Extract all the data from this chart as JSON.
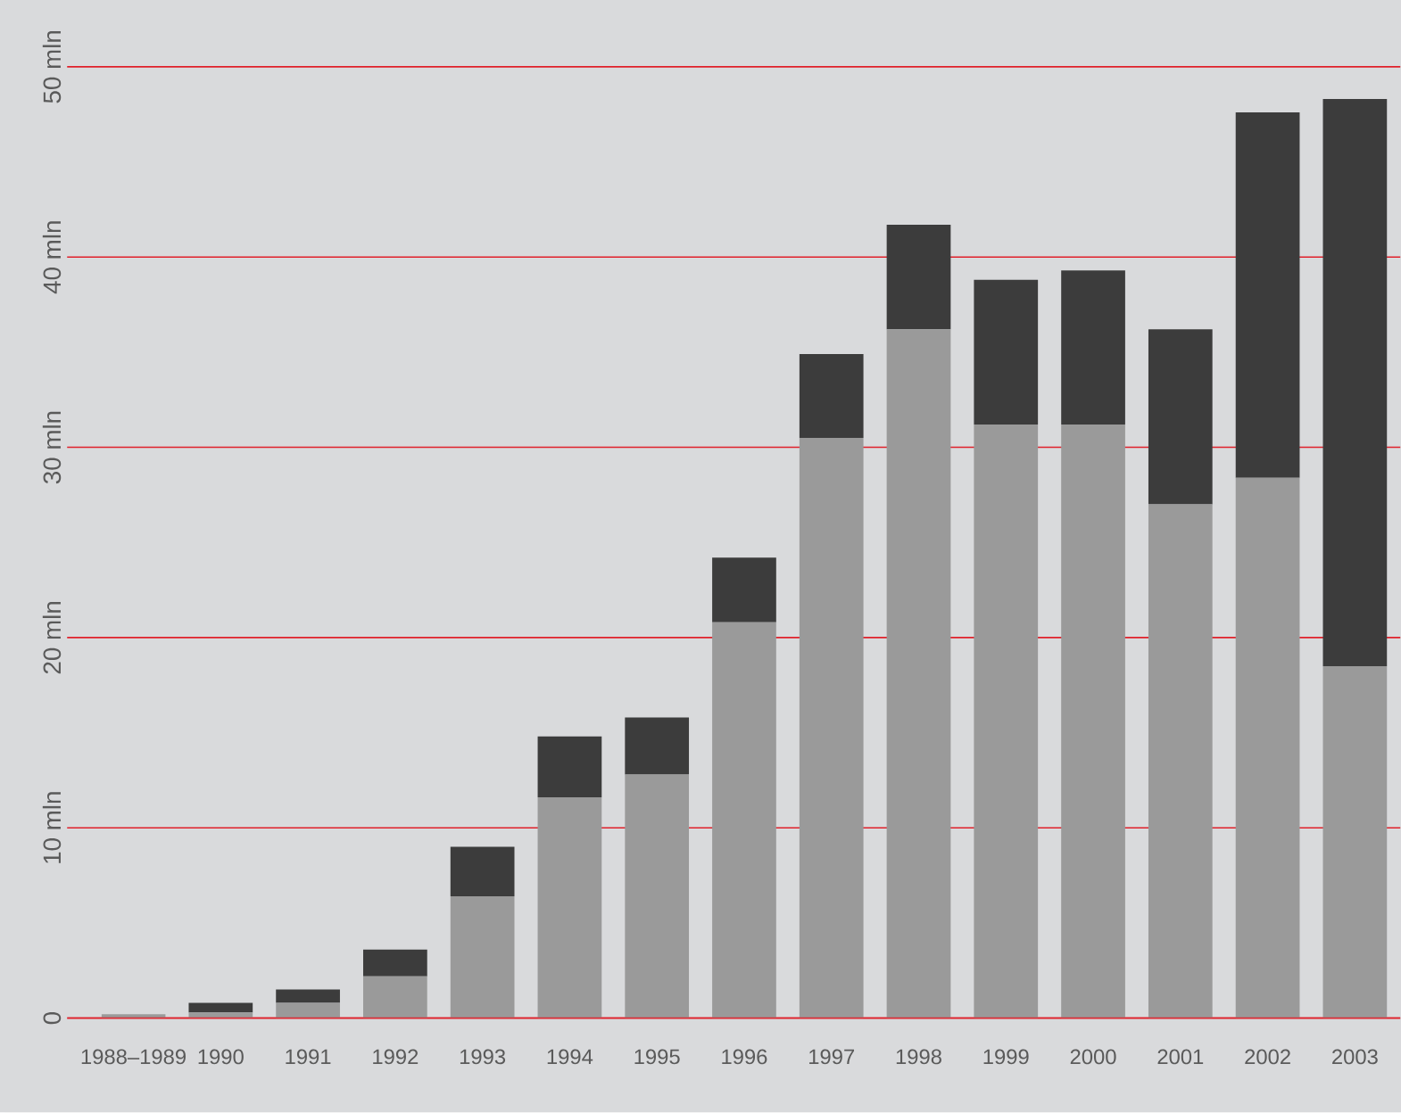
{
  "chart_data": {
    "type": "bar",
    "stacked": true,
    "categories": [
      "1988–1989",
      "1990",
      "1991",
      "1992",
      "1993",
      "1994",
      "1995",
      "1996",
      "1997",
      "1998",
      "1999",
      "2000",
      "2001",
      "2002",
      "2003"
    ],
    "series": [
      {
        "color": "#9a9a9a",
        "values": [
          0.2,
          0.3,
          0.8,
          2.2,
          6.4,
          11.6,
          12.8,
          20.8,
          30.5,
          36.2,
          31.2,
          31.2,
          27.0,
          28.4,
          18.5
        ]
      },
      {
        "color": "#3c3c3c",
        "values": [
          0,
          0.5,
          0.7,
          1.4,
          2.6,
          3.2,
          3.0,
          3.4,
          4.4,
          5.5,
          7.6,
          8.1,
          9.2,
          19.2,
          29.8
        ]
      }
    ],
    "ylim": [
      0,
      53.5
    ],
    "yticks": [
      0,
      {
        "value": 10,
        "label": "10 mln"
      },
      {
        "value": 20,
        "label": "20 mln"
      },
      {
        "value": 30,
        "label": "30 mln"
      },
      {
        "value": 40,
        "label": "40 mln"
      },
      {
        "value": 50,
        "label": "50 mln"
      }
    ],
    "grid": "y"
  }
}
